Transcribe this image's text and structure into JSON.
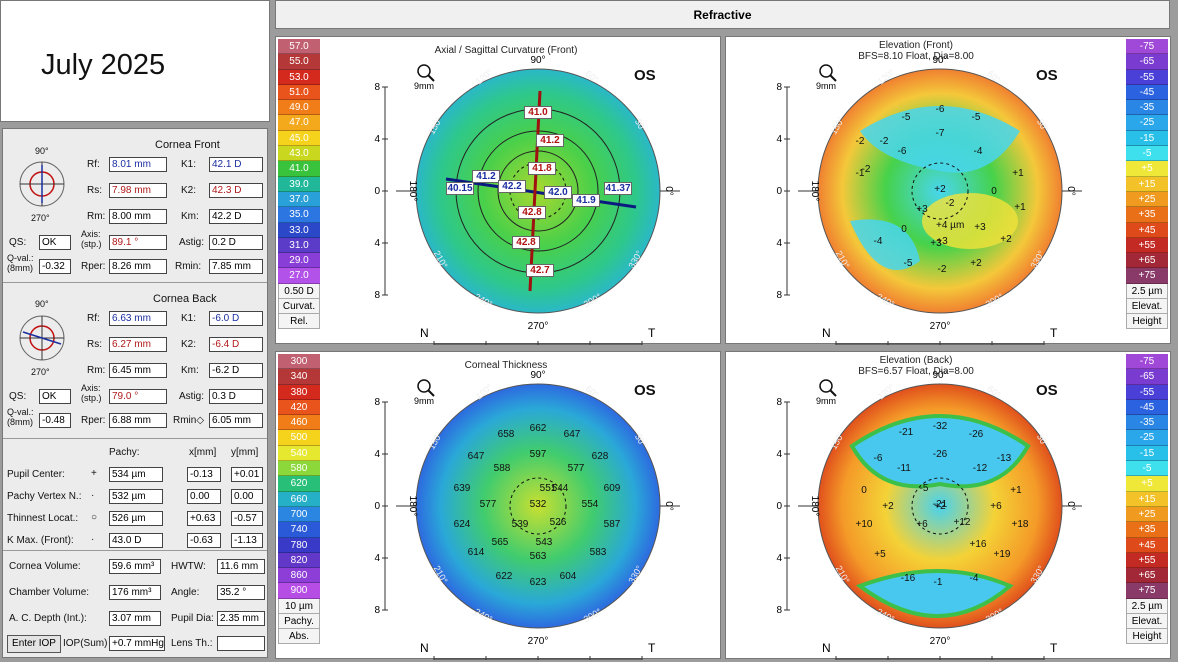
{
  "date_label": "July 2025",
  "title": "Refractive",
  "cornea_front": {
    "heading": "Cornea Front",
    "rf_label": "Rf:",
    "rf": "8.01 mm",
    "rs_label": "Rs:",
    "rs": "7.98 mm",
    "rm_label": "Rm:",
    "rm": "8.00 mm",
    "k1_label": "K1:",
    "k1": "42.1 D",
    "k2_label": "K2:",
    "k2": "42.3 D",
    "km_label": "Km:",
    "km": "42.2 D",
    "qs_label": "QS:",
    "qs": "OK",
    "axis_label": "Axis:\n(stp.)",
    "axis": "89.1 °",
    "astig_label": "Astig:",
    "astig": "0.2 D",
    "qval_label": "Q-val.:\n(8mm)",
    "qval": "-0.32",
    "rper_label": "Rper:",
    "rper": "8.26 mm",
    "rmin_label": "Rmin:",
    "rmin": "7.85 mm"
  },
  "cornea_back": {
    "heading": "Cornea Back",
    "rf_label": "Rf:",
    "rf": "6.63 mm",
    "rs_label": "Rs:",
    "rs": "6.27 mm",
    "rm_label": "Rm:",
    "rm": "6.45 mm",
    "k1_label": "K1:",
    "k1": "-6.0 D",
    "k2_label": "K2:",
    "k2": "-6.4 D",
    "km_label": "Km:",
    "km": "-6.2 D",
    "qs_label": "QS:",
    "qs": "OK",
    "axis_label": "Axis:\n(stp.)",
    "axis": "79.0 °",
    "astig_label": "Astig:",
    "astig": "0.3 D",
    "qval_label": "Q-val.:\n(8mm)",
    "qval": "-0.48",
    "rper_label": "Rper:",
    "rper": "6.88 mm",
    "rmin_label": "Rmin◇",
    "rmin": "6.05 mm"
  },
  "wheel_labels": {
    "top": "90°",
    "left": "180°",
    "bottom": "270°",
    "right": "0°"
  },
  "pachy": {
    "pachy_hdr": "Pachy:",
    "x_hdr": "x[mm]",
    "y_hdr": "y[mm]",
    "rows": [
      {
        "label": "Pupil Center:",
        "sym": "+",
        "pachy": "534 µm",
        "x": "-0.13",
        "y": "+0.01"
      },
      {
        "label": "Pachy Vertex N.:",
        "sym": "·",
        "pachy": "532 µm",
        "x": "0.00",
        "y": "0.00"
      },
      {
        "label": "Thinnest Locat.:",
        "sym": "○",
        "pachy": "526 µm",
        "x": "+0.63",
        "y": "-0.57"
      },
      {
        "label": "K Max. (Front):",
        "sym": "·",
        "pachy": "43.0 D",
        "x": "-0.63",
        "y": "-1.13"
      }
    ]
  },
  "volumes": {
    "cornea_volume_label": "Cornea Volume:",
    "cornea_volume": "59.6 mm³",
    "hwtw_label": "HWTW:",
    "hwtw": "11.6 mm",
    "chamber_volume_label": "Chamber Volume:",
    "chamber_volume": "176 mm³",
    "angle_label": "Angle:",
    "angle": "35.2 °",
    "acd_label": "A. C. Depth (Int.):",
    "acd": "3.07 mm",
    "pupil_dia_label": "Pupil Dia:",
    "pupil_dia": "2.35 mm",
    "enter_iop": "Enter IOP",
    "iop_label": "IOP(Sum)",
    "iop": "+0.7 mmHg",
    "lens_label": "Lens Th.:",
    "lens": ""
  },
  "maps": [
    {
      "title": "Axial / Sagittal Curvature (Front)",
      "subtitle": "",
      "eye": "OS",
      "zoom": "9mm",
      "legend_bottom": [
        "0.50 D",
        "Curvat.",
        "Rel."
      ],
      "legend": [
        {
          "label": "57.0",
          "color": "#c06070"
        },
        {
          "label": "55.0",
          "color": "#b43838"
        },
        {
          "label": "53.0",
          "color": "#d42a1e"
        },
        {
          "label": "51.0",
          "color": "#e8541c"
        },
        {
          "label": "49.0",
          "color": "#f07d18"
        },
        {
          "label": "47.0",
          "color": "#f4a81c"
        },
        {
          "label": "45.0",
          "color": "#f5d21c"
        },
        {
          "label": "43.0",
          "color": "#c9d81e"
        },
        {
          "label": "41.0",
          "color": "#39c23c"
        },
        {
          "label": "39.0",
          "color": "#21b89a"
        },
        {
          "label": "37.0",
          "color": "#2aa0d8"
        },
        {
          "label": "35.0",
          "color": "#2b76e0"
        },
        {
          "label": "33.0",
          "color": "#2a48c8"
        },
        {
          "label": "31.0",
          "color": "#5b3cc8"
        },
        {
          "label": "29.0",
          "color": "#8a3ed8"
        },
        {
          "label": "27.0",
          "color": "#b352e8"
        }
      ],
      "values": [
        "41.0",
        "41.2",
        "41.8",
        "42.8",
        "42.8",
        "42.7",
        "41.2",
        "42.2",
        "42.0",
        "41.9",
        "40.15",
        "41.37"
      ]
    },
    {
      "title": "Elevation (Front)",
      "subtitle": "BFS=8.10 Float, Dia=8.00",
      "eye": "OS",
      "zoom": "9mm",
      "legend_bottom": [
        "2.5 µm",
        "Elevat.",
        "Height"
      ],
      "legend": [
        {
          "label": "-75",
          "color": "#a048d8"
        },
        {
          "label": "-65",
          "color": "#7a3cd0"
        },
        {
          "label": "-55",
          "color": "#4a40d8"
        },
        {
          "label": "-45",
          "color": "#2a62e0"
        },
        {
          "label": "-35",
          "color": "#2a86e4"
        },
        {
          "label": "-25",
          "color": "#2aa6ea"
        },
        {
          "label": "-15",
          "color": "#28c0e8"
        },
        {
          "label": "-5",
          "color": "#3ee0ee"
        },
        {
          "label": "+5",
          "color": "#f0e838"
        },
        {
          "label": "+15",
          "color": "#f2c228"
        },
        {
          "label": "+25",
          "color": "#f09a20"
        },
        {
          "label": "+35",
          "color": "#ea7018"
        },
        {
          "label": "+45",
          "color": "#de4a1a"
        },
        {
          "label": "+55",
          "color": "#c42a24"
        },
        {
          "label": "+65",
          "color": "#a22838"
        },
        {
          "label": "+75",
          "color": "#8a3a68"
        }
      ],
      "values": [
        "-5",
        "-6",
        "-5",
        "-2",
        "-7",
        "-2",
        "-2",
        "-6",
        "-4",
        "-1",
        "+1",
        "+2",
        "0",
        "+3",
        "-2",
        "+1",
        "+3",
        "+4 µm",
        "+3",
        "+2",
        "-4",
        "0",
        "+3",
        "-5",
        "-2",
        "+2"
      ]
    },
    {
      "title": "Corneal Thickness",
      "subtitle": "",
      "eye": "OS",
      "zoom": "9mm",
      "legend_bottom": [
        "10 µm",
        "Pachy.",
        "Abs."
      ],
      "legend": [
        {
          "label": "300",
          "color": "#c06070"
        },
        {
          "label": "340",
          "color": "#b43838"
        },
        {
          "label": "380",
          "color": "#d42a1e"
        },
        {
          "label": "420",
          "color": "#e8541c"
        },
        {
          "label": "460",
          "color": "#f07d18"
        },
        {
          "label": "500",
          "color": "#f5d21c"
        },
        {
          "label": "540",
          "color": "#e6e830"
        },
        {
          "label": "580",
          "color": "#8cd83a"
        },
        {
          "label": "620",
          "color": "#28c078"
        },
        {
          "label": "660",
          "color": "#26b0c8"
        },
        {
          "label": "700",
          "color": "#2a86e0"
        },
        {
          "label": "740",
          "color": "#2a5ad8"
        },
        {
          "label": "780",
          "color": "#3a3ac8"
        },
        {
          "label": "820",
          "color": "#6238c8"
        },
        {
          "label": "860",
          "color": "#8c3ed6"
        },
        {
          "label": "900",
          "color": "#b64ee6"
        }
      ],
      "values": [
        "658",
        "662",
        "647",
        "647",
        "597",
        "628",
        "588",
        "577",
        "639",
        "551",
        "544",
        "609",
        "577",
        "532",
        "554",
        "624",
        "539",
        "526",
        "587",
        "565",
        "543",
        "614",
        "563",
        "583",
        "622",
        "623",
        "604"
      ]
    },
    {
      "title": "Elevation (Back)",
      "subtitle": "BFS=6.57 Float, Dia=8.00",
      "eye": "OS",
      "zoom": "9mm",
      "legend_bottom": [
        "2.5 µm",
        "Elevat.",
        "Height"
      ],
      "legend": [
        {
          "label": "-75",
          "color": "#a048d8"
        },
        {
          "label": "-65",
          "color": "#7a3cd0"
        },
        {
          "label": "-55",
          "color": "#4a40d8"
        },
        {
          "label": "-45",
          "color": "#2a62e0"
        },
        {
          "label": "-35",
          "color": "#2a86e4"
        },
        {
          "label": "-25",
          "color": "#2aa6ea"
        },
        {
          "label": "-15",
          "color": "#28c0e8"
        },
        {
          "label": "-5",
          "color": "#3ee0ee"
        },
        {
          "label": "+5",
          "color": "#f0e838"
        },
        {
          "label": "+15",
          "color": "#f2c228"
        },
        {
          "label": "+25",
          "color": "#f09a20"
        },
        {
          "label": "+35",
          "color": "#ea7018"
        },
        {
          "label": "+45",
          "color": "#de4a1a"
        },
        {
          "label": "+55",
          "color": "#c42a24"
        },
        {
          "label": "+65",
          "color": "#a22838"
        },
        {
          "label": "+75",
          "color": "#8a3a68"
        }
      ],
      "values": [
        "-21",
        "-32",
        "-26",
        "-6",
        "-26",
        "-11",
        "-12",
        "-13",
        "0",
        "-5",
        "+1",
        "+2",
        "+2",
        "+6",
        "+10",
        "+6",
        "+12",
        "+18",
        "+5",
        "+16",
        "+19",
        "-16",
        "-1",
        "-4",
        "-21"
      ]
    }
  ],
  "map_axes": {
    "top": "90°",
    "bottom": "270°",
    "left": "180°",
    "right": "0°",
    "nasal": "N",
    "temporal": "T",
    "ticks_x": [
      "8",
      "4",
      "0",
      "4",
      "8"
    ],
    "ticks_y": [
      "8",
      "4",
      "0",
      "4",
      "8"
    ],
    "deg": [
      "120°",
      "60°",
      "150°",
      "30°",
      "210°",
      "330°",
      "240°",
      "300°"
    ]
  }
}
